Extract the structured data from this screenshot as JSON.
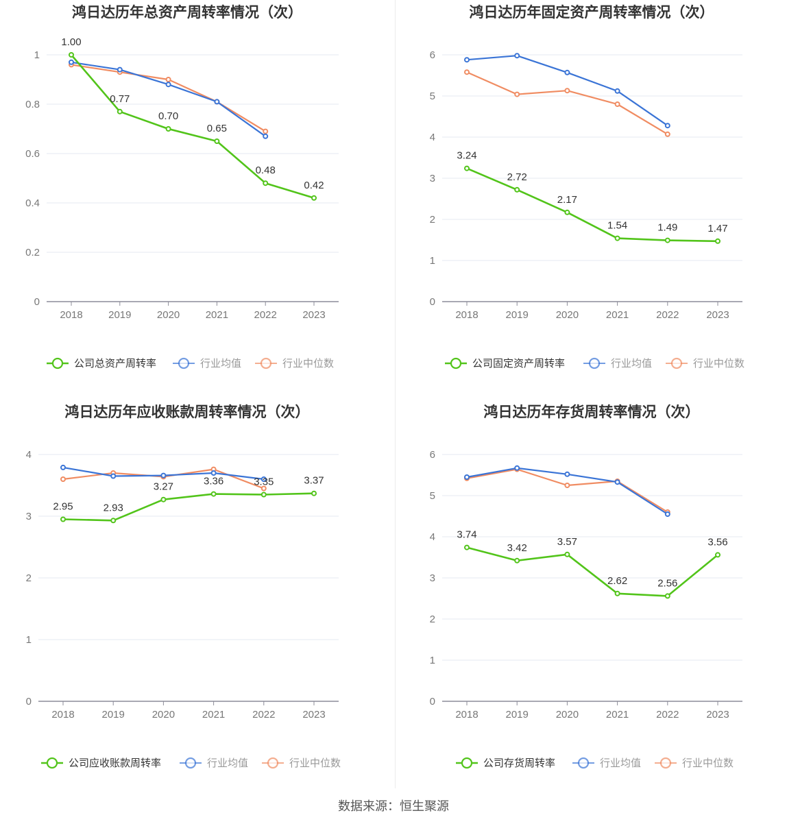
{
  "source_text": "数据来源：恒生聚源",
  "colors": {
    "company": "#52c41a",
    "average": "#3a74d6",
    "median": "#f08c62"
  },
  "chart_data": [
    {
      "type": "line",
      "title": "鸿日达历年总资产周转率情况（次）",
      "categories": [
        "2018",
        "2019",
        "2020",
        "2021",
        "2022",
        "2023"
      ],
      "ylim": [
        0,
        1
      ],
      "yticks": [
        "0",
        "0.2",
        "0.4",
        "0.6",
        "0.8",
        "1"
      ],
      "series": [
        {
          "name": "公司总资产周转率",
          "key": "company",
          "values": [
            1.0,
            0.77,
            0.7,
            0.65,
            0.48,
            0.42
          ],
          "labels": [
            "1.00",
            "0.77",
            "0.70",
            "0.65",
            "0.48",
            "0.42"
          ]
        },
        {
          "name": "行业均值",
          "key": "average",
          "values": [
            0.97,
            0.94,
            0.88,
            0.81,
            0.67,
            null
          ]
        },
        {
          "name": "行业中位数",
          "key": "median",
          "values": [
            0.96,
            0.93,
            0.9,
            0.81,
            0.69,
            null
          ]
        }
      ]
    },
    {
      "type": "line",
      "title": "鸿日达历年固定资产周转率情况（次）",
      "categories": [
        "2018",
        "2019",
        "2020",
        "2021",
        "2022",
        "2023"
      ],
      "ylim": [
        0,
        6
      ],
      "yticks": [
        "0",
        "1",
        "2",
        "3",
        "4",
        "5",
        "6"
      ],
      "series": [
        {
          "name": "公司固定资产周转率",
          "key": "company",
          "values": [
            3.24,
            2.72,
            2.17,
            1.54,
            1.49,
            1.47
          ],
          "labels": [
            "3.24",
            "2.72",
            "2.17",
            "1.54",
            "1.49",
            "1.47"
          ]
        },
        {
          "name": "行业均值",
          "key": "average",
          "values": [
            5.88,
            5.98,
            5.57,
            5.12,
            4.28,
            null
          ]
        },
        {
          "name": "行业中位数",
          "key": "median",
          "values": [
            5.58,
            5.04,
            5.13,
            4.8,
            4.07,
            null
          ]
        }
      ]
    },
    {
      "type": "line",
      "title": "鸿日达历年应收账款周转率情况（次）",
      "categories": [
        "2018",
        "2019",
        "2020",
        "2021",
        "2022",
        "2023"
      ],
      "ylim": [
        0,
        4
      ],
      "yticks": [
        "0",
        "1",
        "2",
        "3",
        "4"
      ],
      "series": [
        {
          "name": "公司应收账款周转率",
          "key": "company",
          "values": [
            2.95,
            2.93,
            3.27,
            3.36,
            3.35,
            3.37
          ],
          "labels": [
            "2.95",
            "2.93",
            "3.27",
            "3.36",
            "3.35",
            "3.37"
          ]
        },
        {
          "name": "行业均值",
          "key": "average",
          "values": [
            3.79,
            3.65,
            3.66,
            3.7,
            3.6,
            null
          ]
        },
        {
          "name": "行业中位数",
          "key": "median",
          "values": [
            3.6,
            3.7,
            3.64,
            3.76,
            3.45,
            null
          ]
        }
      ]
    },
    {
      "type": "line",
      "title": "鸿日达历年存货周转率情况（次）",
      "categories": [
        "2018",
        "2019",
        "2020",
        "2021",
        "2022",
        "2023"
      ],
      "ylim": [
        0,
        6
      ],
      "yticks": [
        "0",
        "1",
        "2",
        "3",
        "4",
        "5",
        "6"
      ],
      "series": [
        {
          "name": "公司存货周转率",
          "key": "company",
          "values": [
            3.74,
            3.42,
            3.57,
            2.62,
            2.56,
            3.56
          ],
          "labels": [
            "3.74",
            "3.42",
            "3.57",
            "2.62",
            "2.56",
            "3.56"
          ]
        },
        {
          "name": "行业均值",
          "key": "average",
          "values": [
            5.45,
            5.67,
            5.52,
            5.33,
            4.55,
            null
          ]
        },
        {
          "name": "行业中位数",
          "key": "median",
          "values": [
            5.42,
            5.64,
            5.25,
            5.35,
            4.6,
            null
          ]
        }
      ]
    }
  ]
}
